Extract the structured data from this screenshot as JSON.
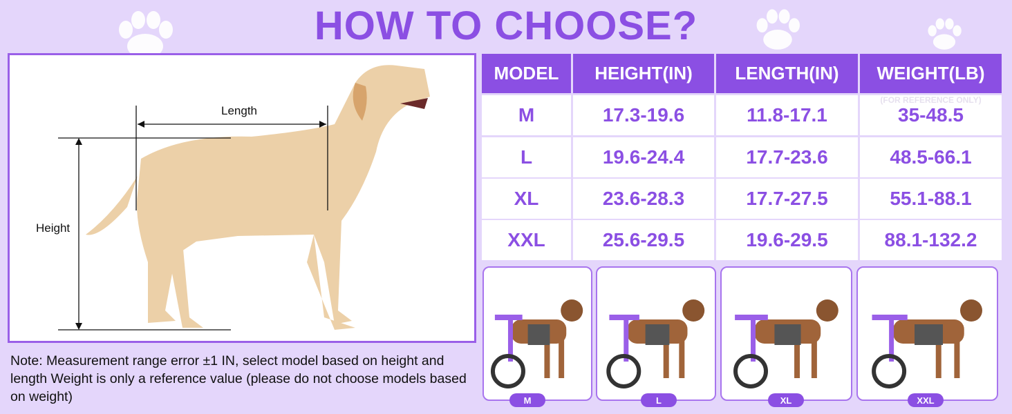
{
  "title": "HOW TO CHOOSE?",
  "diagram": {
    "length_label": "Length",
    "height_label": "Height"
  },
  "note": "Note: Measurement range error ±1 IN, select model based on height and length Weight is only a reference value (please do not choose models based on weight)",
  "table": {
    "headers": [
      "MODEL",
      "HEIGHT(IN)",
      "LENGTH(IN)",
      "WEIGHT(LB)"
    ],
    "weight_note": "(FOR REFERENCE ONLY)",
    "rows": [
      [
        "M",
        "17.3-19.6",
        "11.8-17.1",
        "35-48.5"
      ],
      [
        "L",
        "19.6-24.4",
        "17.7-23.6",
        "48.5-66.1"
      ],
      [
        "XL",
        "23.6-28.3",
        "17.7-27.5",
        "55.1-88.1"
      ],
      [
        "XXL",
        "25.6-29.5",
        "19.6-29.5",
        "88.1-132.2"
      ]
    ]
  },
  "cards": [
    "M",
    "L",
    "XL",
    "XXL"
  ],
  "colors": {
    "accent": "#8b4fe3",
    "background": "#e4d6fb"
  }
}
